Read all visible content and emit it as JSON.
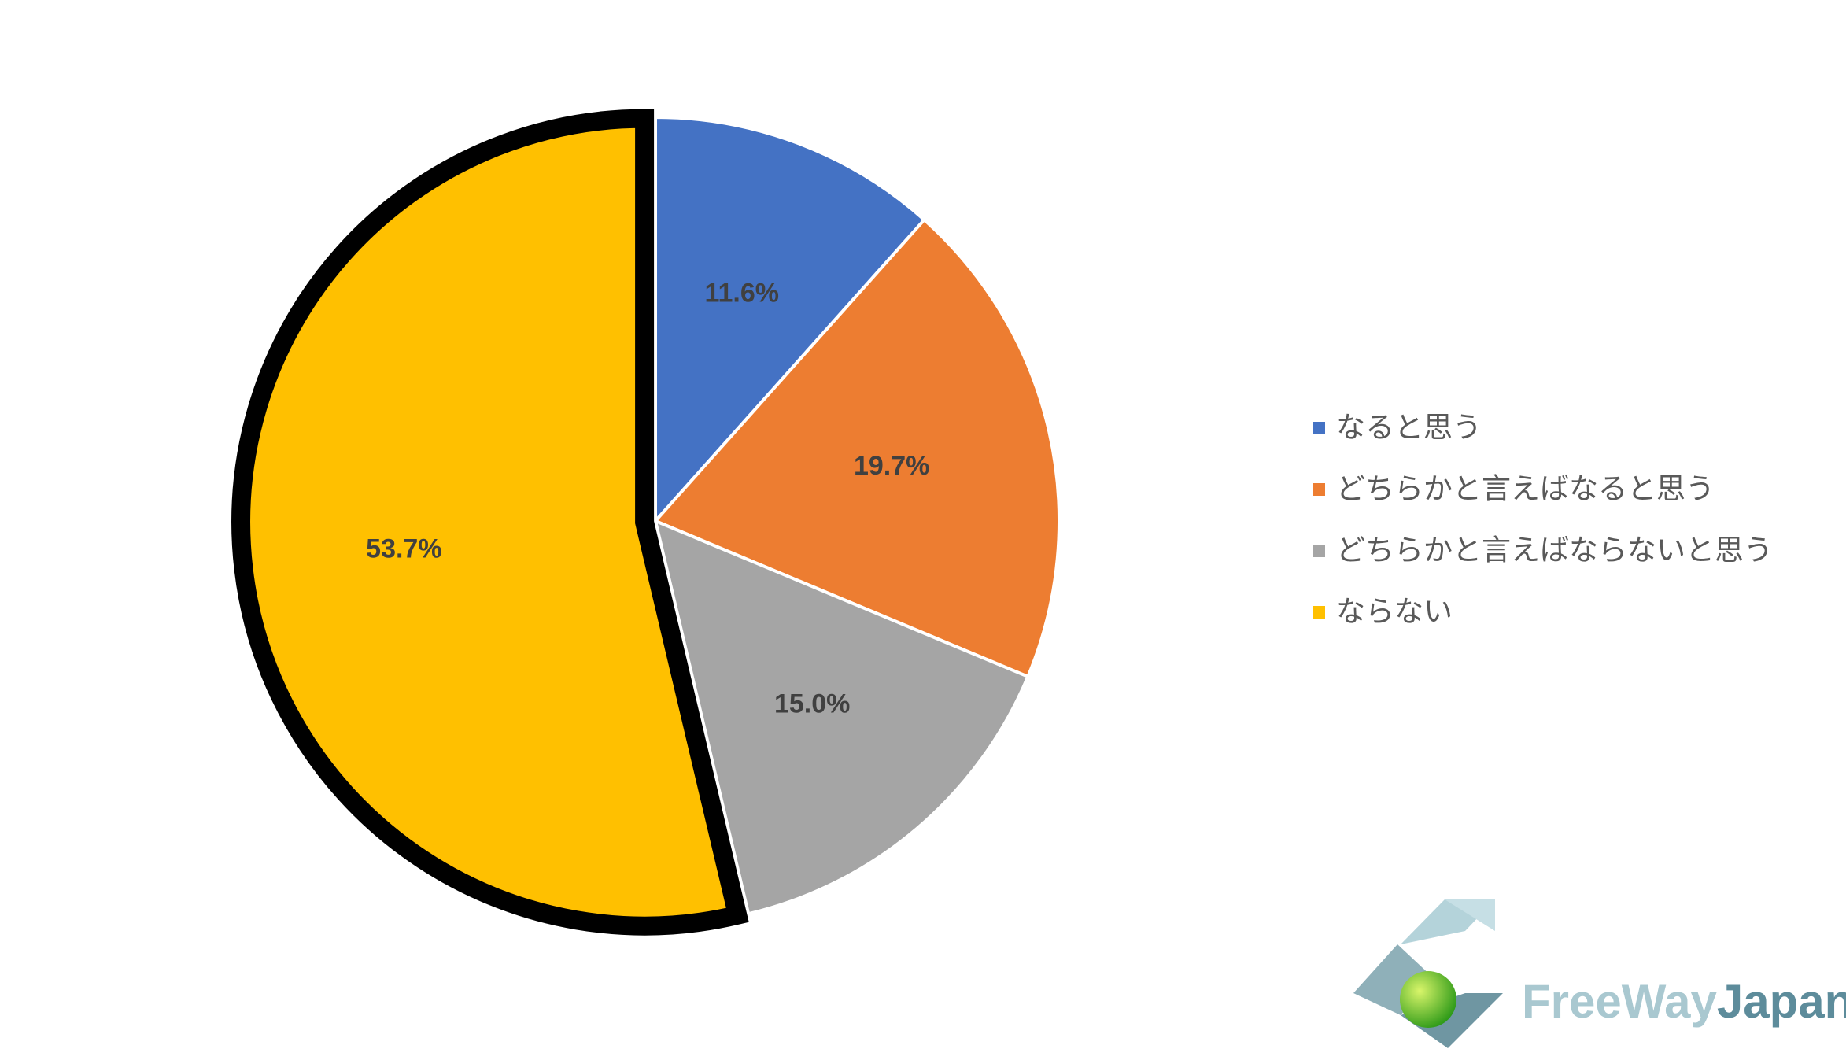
{
  "chart_data": {
    "type": "pie",
    "categories": [
      "なると思う",
      "どちらかと言えばなると思う",
      "どちらかと言えばならないと思う",
      "ならない"
    ],
    "values": [
      11.6,
      19.7,
      15.0,
      53.7
    ],
    "value_labels": [
      "11.6%",
      "19.7%",
      "15.0%",
      "53.7%"
    ],
    "colors": [
      "#4472c4",
      "#ed7d31",
      "#a5a5a5",
      "#ffc000"
    ],
    "exploded": [
      false,
      false,
      false,
      true
    ],
    "legend": "right"
  },
  "logo": {
    "text": [
      "FreeWay",
      "Japan"
    ]
  }
}
